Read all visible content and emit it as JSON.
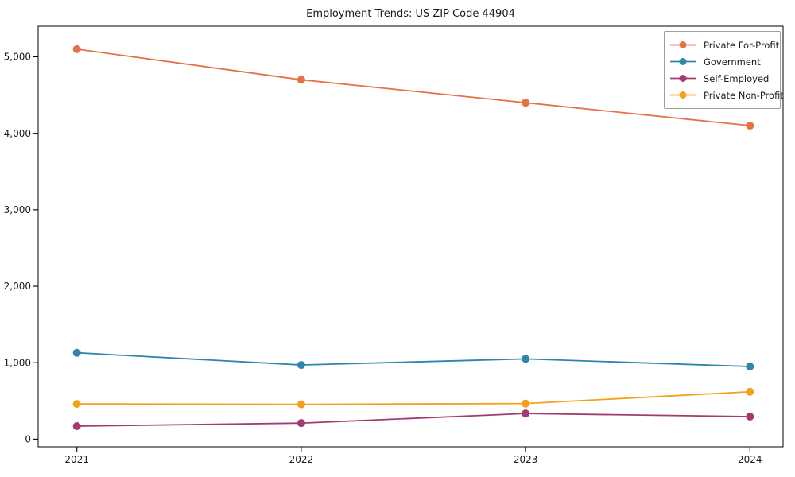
{
  "title": "Employment Trends: US ZIP Code 44904",
  "chart_data": {
    "type": "line",
    "title": "Employment Trends: US ZIP Code 44904",
    "x_labels": [
      "2021",
      "2022",
      "2023",
      "2024"
    ],
    "series": [
      {
        "name": "Private For-Profit",
        "color": "#E57245",
        "values": [
          5100,
          4700,
          4400,
          4100
        ]
      },
      {
        "name": "Government",
        "color": "#2E86AB",
        "values": [
          1130,
          970,
          1050,
          950
        ]
      },
      {
        "name": "Self-Employed",
        "color": "#A23B72",
        "values": [
          170,
          210,
          335,
          295
        ]
      },
      {
        "name": "Private Non-Profit",
        "color": "#F5A01B",
        "values": [
          460,
          455,
          465,
          620
        ]
      }
    ],
    "yticks": [
      0,
      1000,
      2000,
      3000,
      4000,
      5000
    ],
    "ytick_labels": [
      "0",
      "1,000",
      "2,000",
      "3,000",
      "4,000",
      "5,000"
    ],
    "ylim": [
      -100,
      5400
    ],
    "xlabel": "",
    "ylabel": "",
    "grid": false,
    "legend_position": "upper right",
    "marker": "circle"
  }
}
